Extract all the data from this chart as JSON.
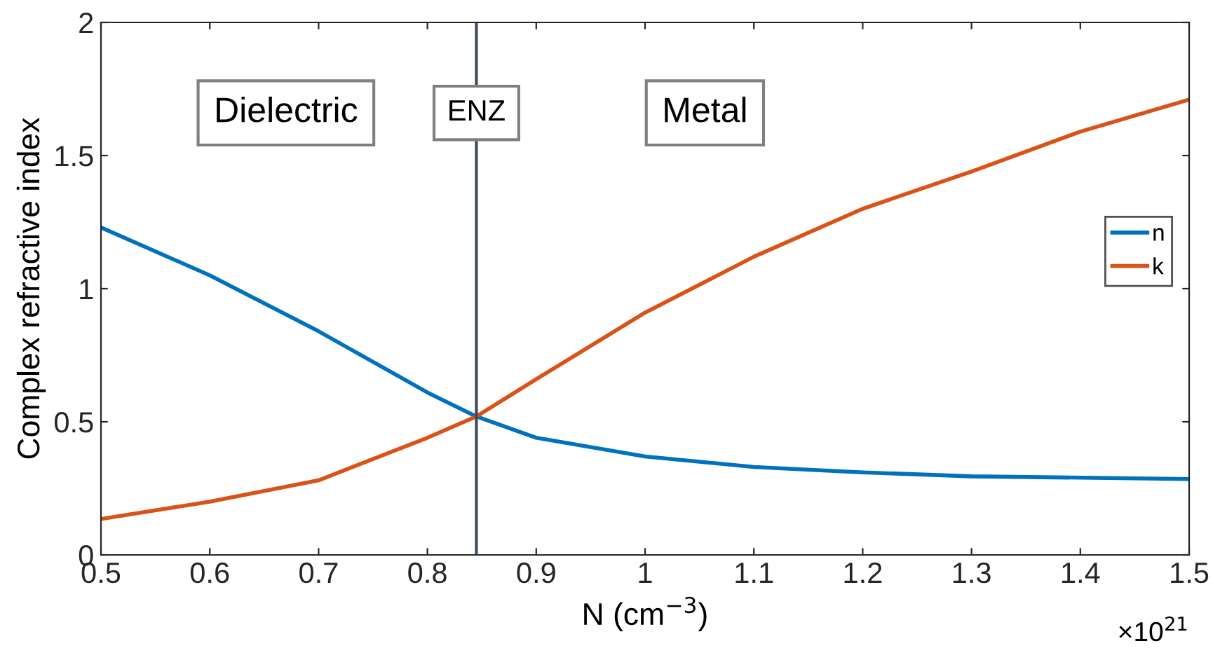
{
  "chart_data": {
    "type": "line",
    "xlabel": "N (cm$^{−3}$)",
    "ylabel": "Complex refractive index",
    "annotations": [
      "Dielectric",
      "ENZ",
      "Metal",
      "×10$^{21}$"
    ],
    "x": [
      0.5,
      0.6,
      0.7,
      0.8,
      0.845,
      0.9,
      1.0,
      1.1,
      1.2,
      1.3,
      1.4,
      1.5
    ],
    "series": [
      {
        "name": "n",
        "color": "#0072bd",
        "values": [
          1.23,
          1.05,
          0.84,
          0.61,
          0.52,
          0.44,
          0.37,
          0.33,
          0.31,
          0.295,
          0.29,
          0.285
        ]
      },
      {
        "name": "k",
        "color": "#d95319",
        "values": [
          0.135,
          0.2,
          0.28,
          0.44,
          0.52,
          0.66,
          0.91,
          1.12,
          1.3,
          1.44,
          1.59,
          1.71
        ]
      }
    ],
    "ref_lines": [
      {
        "axis": "x",
        "value": 0.845,
        "color": "#3c4a60"
      }
    ],
    "xlim": [
      0.5,
      1.5
    ],
    "ylim": [
      0,
      2
    ],
    "xticks": [
      0.5,
      0.6,
      0.7,
      0.8,
      0.9,
      1,
      1.1,
      1.2,
      1.3,
      1.4,
      1.5
    ],
    "yticks": [
      0,
      0.5,
      1,
      1.5,
      2
    ],
    "grid": false,
    "legend": "right",
    "marker": "none",
    "line_style": "solid"
  }
}
